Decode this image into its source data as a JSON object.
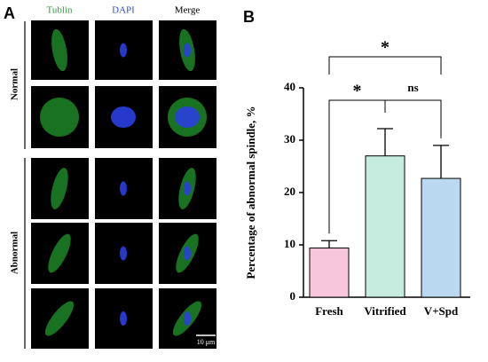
{
  "panel_a": {
    "label": "A",
    "columns": [
      "Tublin",
      "DAPI",
      "Merge"
    ],
    "row_groups": [
      "Normal",
      "Abnormal"
    ],
    "scale_bar": "10 μm"
  },
  "chart_data": {
    "type": "bar",
    "panel_label": "B",
    "ylabel": "Percentage of abnormal spindle, %",
    "categories": [
      "Fresh",
      "Vitrified",
      "V+Spd"
    ],
    "values": [
      9.4,
      27,
      22.7
    ],
    "errors": [
      1.4,
      5.2,
      6.3
    ],
    "colors": [
      "#f7c6dc",
      "#c6ecdf",
      "#bad8f0"
    ],
    "ylim": [
      0,
      40
    ],
    "yticks": [
      0,
      10,
      20,
      30,
      40
    ],
    "annotations": [
      "*",
      "ns",
      "*"
    ]
  }
}
